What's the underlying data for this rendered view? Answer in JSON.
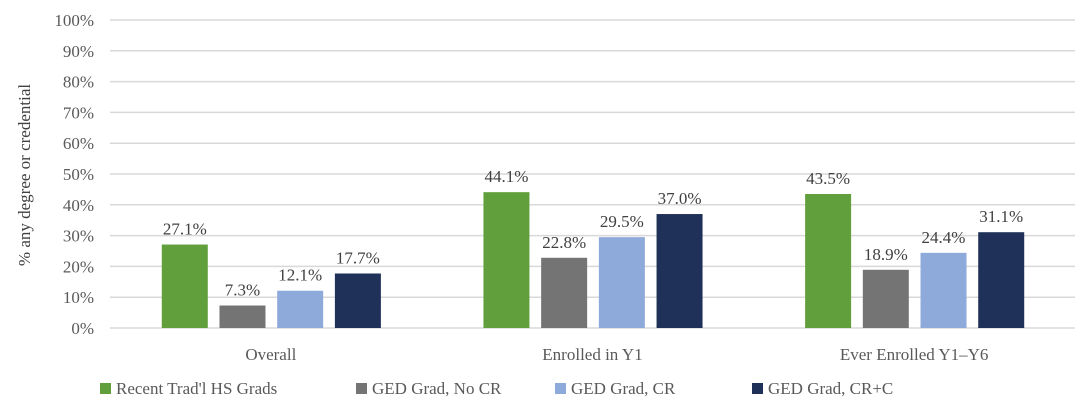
{
  "chart_data": {
    "type": "bar",
    "title": "",
    "xlabel": "",
    "ylabel": "% any degree or credential",
    "ylim": [
      0,
      100
    ],
    "yticks": [
      "0%",
      "10%",
      "20%",
      "30%",
      "40%",
      "50%",
      "60%",
      "70%",
      "80%",
      "90%",
      "100%"
    ],
    "grid": true,
    "legend_position": "bottom",
    "categories": [
      "Overall",
      "Enrolled in Y1",
      "Ever Enrolled Y1–Y6"
    ],
    "series": [
      {
        "name": "Recent Trad'l HS Grads",
        "color": "#619f3d",
        "values": [
          27.1,
          44.1,
          43.5
        ],
        "labels": [
          "27.1%",
          "44.1%",
          "43.5%"
        ]
      },
      {
        "name": "GED Grad, No CR",
        "color": "#747474",
        "values": [
          7.3,
          22.8,
          18.9
        ],
        "labels": [
          "7.3%",
          "22.8%",
          "18.9%"
        ]
      },
      {
        "name": "GED Grad, CR",
        "color": "#8eaadb",
        "values": [
          12.1,
          29.5,
          24.4
        ],
        "labels": [
          "12.1%",
          "29.5%",
          "24.4%"
        ]
      },
      {
        "name": "GED Grad, CR+C",
        "color": "#1f3159",
        "values": [
          17.7,
          37.0,
          31.1
        ],
        "labels": [
          "17.7%",
          "37.0%",
          "31.1%"
        ]
      }
    ]
  }
}
